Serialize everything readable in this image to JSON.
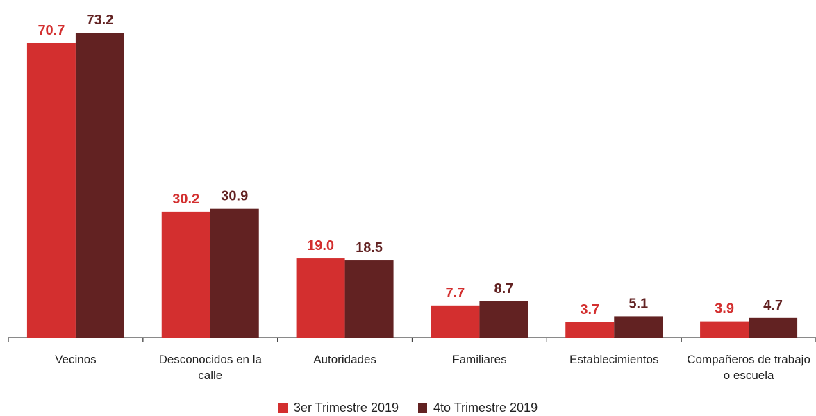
{
  "chart_data": {
    "type": "bar",
    "categories": [
      "Vecinos",
      "Desconocidos en la calle",
      "Autoridades",
      "Familiares",
      "Establecimientos",
      "Compañeros de trabajo o escuela"
    ],
    "series": [
      {
        "name": "3er Trimestre 2019",
        "color": "#d32f2f",
        "values": [
          70.7,
          30.2,
          19.0,
          7.7,
          3.7,
          3.9
        ],
        "value_labels": [
          "70.7",
          "30.2",
          "19.0",
          "7.7",
          "3.7",
          "3.9"
        ]
      },
      {
        "name": "4to Trimestre 2019",
        "color": "#622222",
        "values": [
          73.2,
          30.9,
          18.5,
          8.7,
          5.1,
          4.7
        ],
        "value_labels": [
          "73.2",
          "30.9",
          "18.5",
          "8.7",
          "5.1",
          "4.7"
        ]
      }
    ]
  }
}
